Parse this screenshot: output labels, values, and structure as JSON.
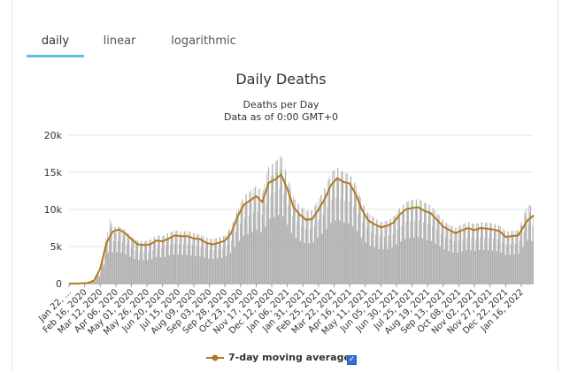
{
  "tabs": [
    {
      "label": "daily"
    },
    {
      "label": "linear"
    },
    {
      "label": "logarithmic"
    }
  ],
  "colors": {
    "bar": "#a6a6a6",
    "line": "#b07a1f",
    "tab_active": "#5bc0de",
    "checkbox": "#2f6fd6"
  },
  "chart_data": {
    "type": "bar",
    "title": "Daily Deaths",
    "subtitle_1": "Deaths per Day",
    "subtitle_2": "Data as of 0:00 GMT+0",
    "ylim": [
      0,
      20000
    ],
    "yticks": [
      0,
      5000,
      10000,
      15000,
      20000
    ],
    "ytick_labels": [
      "0",
      "5k",
      "10k",
      "15k",
      "20k"
    ],
    "xtick_labels": [
      "Jan 22, ...",
      "Feb 16, 2020",
      "Mar 12, 2020",
      "Apr 06, 2020",
      "May 01, 2020",
      "May 26, 2020",
      "Jun 20, 2020",
      "Jul 15, 2020",
      "Aug 09, 2020",
      "Sep 03, 2020",
      "Sep 28, 2020",
      "Oct 23, 2020",
      "Nov 17, 2020",
      "Dec 12, 2020",
      "Jan 06, 2021",
      "Jan 31, 2021",
      "Feb 25, 2021",
      "Mar 22, 2021",
      "Apr 16, 2021",
      "May 11, 2021",
      "Jun 05, 2021",
      "Jun 30, 2021",
      "Jul 25, 2021",
      "Aug 19, 2021",
      "Sep 13, 2021",
      "Oct 08, 2021",
      "Nov 02, 2021",
      "Nov 27, 2021",
      "Dec 22, 2021",
      "Jan 16, 2022"
    ],
    "series": [
      {
        "name": "7-day moving average",
        "type": "line",
        "x_index": [
          0,
          15,
          30,
          40,
          50,
          60,
          70,
          80,
          90,
          100,
          110,
          120,
          130,
          140,
          150,
          160,
          170,
          180,
          190,
          200,
          210,
          220,
          230,
          240,
          250,
          260,
          270,
          280,
          290,
          300,
          310,
          320,
          330,
          340,
          350,
          360,
          370,
          380,
          390,
          400,
          410,
          420,
          430,
          440,
          450,
          460,
          470,
          480,
          490,
          500,
          510,
          520,
          530,
          540,
          550,
          560,
          570,
          580,
          590,
          600,
          610,
          620,
          630,
          640,
          650,
          660,
          670,
          680,
          690,
          700,
          720,
          735,
          745
        ],
        "values": [
          0,
          20,
          100,
          400,
          2000,
          5500,
          7000,
          7300,
          6800,
          6000,
          5300,
          5200,
          5300,
          5800,
          5700,
          6100,
          6500,
          6400,
          6400,
          6100,
          6000,
          5500,
          5300,
          5500,
          5800,
          6800,
          9000,
          10600,
          11200,
          11800,
          11000,
          13600,
          14000,
          14700,
          12800,
          10300,
          9300,
          8600,
          8700,
          10000,
          11400,
          13300,
          14200,
          13700,
          13500,
          12000,
          9900,
          8500,
          8000,
          7600,
          7800,
          8200,
          9300,
          10000,
          10200,
          10300,
          9800,
          9500,
          8600,
          7700,
          7200,
          6800,
          7200,
          7500,
          7200,
          7500,
          7400,
          7300,
          7100,
          6300,
          6500,
          8500,
          9200
        ]
      },
      {
        "name": "Daily deaths",
        "type": "bar",
        "x_index": [
          0,
          30,
          40,
          50,
          60,
          65,
          70,
          80,
          90,
          100,
          110,
          120,
          130,
          140,
          150,
          160,
          170,
          180,
          190,
          200,
          210,
          220,
          230,
          240,
          250,
          260,
          270,
          280,
          290,
          300,
          310,
          320,
          330,
          340,
          350,
          360,
          370,
          380,
          390,
          400,
          410,
          420,
          430,
          440,
          450,
          460,
          470,
          480,
          490,
          500,
          510,
          520,
          530,
          540,
          550,
          560,
          570,
          580,
          590,
          600,
          610,
          620,
          630,
          640,
          650,
          660,
          670,
          680,
          690,
          700,
          720,
          735,
          745
        ],
        "values": [
          0,
          100,
          400,
          2000,
          6500,
          8700,
          7600,
          7700,
          7200,
          6300,
          5800,
          5700,
          5900,
          6500,
          6400,
          6900,
          7200,
          7000,
          7100,
          6800,
          6600,
          6200,
          6000,
          6200,
          6500,
          7700,
          10000,
          11800,
          12400,
          13200,
          12300,
          15800,
          16400,
          17200,
          14300,
          11500,
          10500,
          9800,
          9900,
          11400,
          12900,
          15000,
          15600,
          15000,
          14700,
          13200,
          10900,
          9400,
          8800,
          8300,
          8500,
          9000,
          10200,
          11000,
          11300,
          11400,
          10900,
          10500,
          9500,
          8500,
          7900,
          7500,
          8000,
          8300,
          8000,
          8300,
          8200,
          8100,
          7800,
          7000,
          7200,
          10700,
          10300
        ]
      }
    ],
    "legend": {
      "label": "7-day moving average",
      "placement": "bottom-center",
      "checked": true
    }
  }
}
